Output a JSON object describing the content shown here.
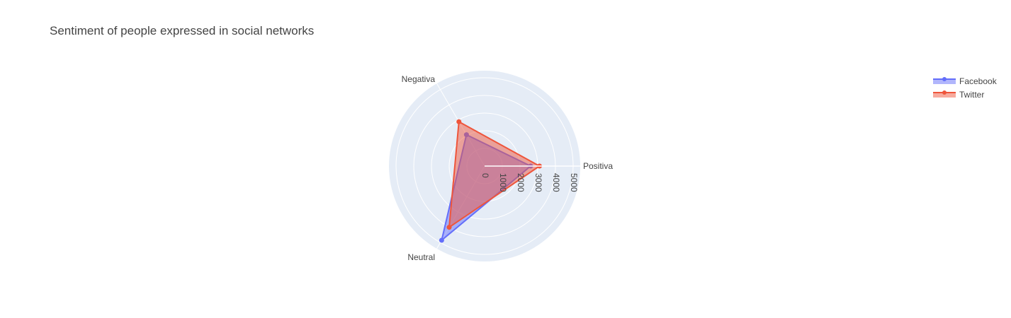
{
  "chart_data": {
    "type": "radar",
    "title": "Sentiment of people expressed in social networks",
    "categories": [
      "Positiva",
      "Negativa",
      "Neutral"
    ],
    "radial_range": [
      0,
      5400
    ],
    "radial_ticks": [
      0,
      1000,
      2000,
      3000,
      4000,
      5000
    ],
    "series": [
      {
        "name": "Facebook",
        "values": [
          2600,
          2050,
          4850
        ],
        "color": "#636efa"
      },
      {
        "name": "Twitter",
        "values": [
          3100,
          2900,
          4000
        ],
        "color": "#ef553b"
      }
    ],
    "legend_position": "top-right"
  }
}
